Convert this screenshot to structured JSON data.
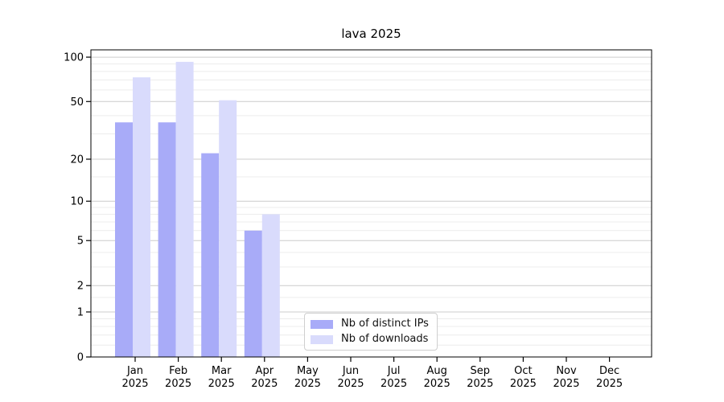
{
  "chart_data": {
    "type": "bar",
    "title": "lava 2025",
    "categories": [
      "Jan",
      "Feb",
      "Mar",
      "Apr",
      "May",
      "Jun",
      "Jul",
      "Aug",
      "Sep",
      "Oct",
      "Nov",
      "Dec"
    ],
    "x_tick_year": "2025",
    "series": [
      {
        "name": "Nb of distinct IPs",
        "color": "#a8abf8",
        "values": [
          36,
          36,
          22,
          6,
          0,
          0,
          0,
          0,
          0,
          0,
          0,
          0
        ]
      },
      {
        "name": "Nb of downloads",
        "color": "#d9dbfc",
        "values": [
          73,
          93,
          51,
          8,
          0,
          0,
          0,
          0,
          0,
          0,
          0,
          0
        ]
      }
    ],
    "yscale": "log10(1+x)",
    "ylim": [
      0,
      112
    ],
    "yticks": [
      0,
      1,
      2,
      5,
      10,
      20,
      50,
      100
    ],
    "ytick_labels": [
      "0",
      "1",
      "2",
      "5",
      "10",
      "20",
      "50",
      "100"
    ],
    "minor_gridlines": [
      0.2,
      0.4,
      0.6,
      0.8,
      1.5,
      3,
      4,
      6,
      7,
      8,
      9,
      15,
      30,
      40,
      60,
      70,
      80,
      90
    ],
    "grid": true,
    "legend": {
      "position": "inside-bottom-center",
      "items": [
        "Nb of distinct IPs",
        "Nb of downloads"
      ]
    },
    "colors": {
      "axis": "#000000",
      "grid_major": "#cccccc",
      "grid_minor": "#ececec",
      "background": "#ffffff"
    }
  }
}
